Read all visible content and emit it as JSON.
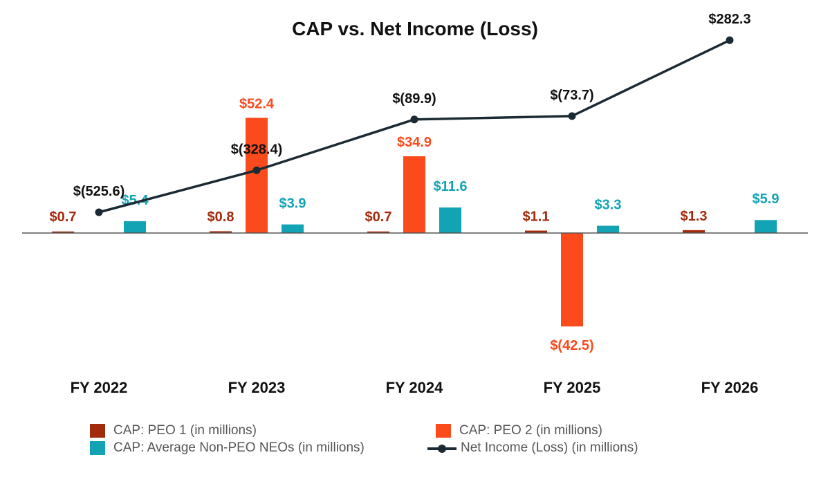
{
  "chart_data": {
    "type": "bar",
    "title": "CAP vs. Net Income (Loss)",
    "categories": [
      "FY 2022",
      "FY 2023",
      "FY 2024",
      "FY 2025",
      "FY 2026"
    ],
    "series": [
      {
        "name": "CAP: PEO 1 (in millions)",
        "kind": "bar",
        "color": "#a32a0d",
        "values": [
          0.7,
          0.8,
          0.7,
          1.1,
          1.3
        ],
        "labels": [
          "$0.7",
          "$0.8",
          "$0.7",
          "$1.1",
          "$1.3"
        ]
      },
      {
        "name": "CAP: PEO 2 (in millions)",
        "kind": "bar",
        "color": "#fb4a1c",
        "values": [
          null,
          52.4,
          34.9,
          -42.5,
          null
        ],
        "labels": [
          null,
          "$52.4",
          "$34.9",
          "$(42.5)",
          null
        ]
      },
      {
        "name": "CAP: Average Non-PEO NEOs (in millions)",
        "kind": "bar",
        "color": "#12a4b4",
        "values": [
          5.4,
          3.9,
          11.6,
          3.3,
          5.9
        ],
        "labels": [
          "$5.4",
          "$3.9",
          "$11.6",
          "$3.3",
          "$5.9"
        ]
      },
      {
        "name": "Net Income (Loss) (in millions)",
        "kind": "line",
        "color": "#1b2a33",
        "values": [
          -525.6,
          -328.4,
          -89.9,
          -73.7,
          282.3
        ],
        "labels": [
          "$(525.6)",
          "$(328.4)",
          "$(89.9)",
          "$(73.7)",
          "$282.3"
        ]
      }
    ],
    "cap_axis": {
      "min": -55,
      "max": 70,
      "visible": false
    },
    "net_income_axis": {
      "min": -750,
      "max": 450,
      "visible": false
    },
    "grid": false,
    "legend_position": "bottom"
  }
}
